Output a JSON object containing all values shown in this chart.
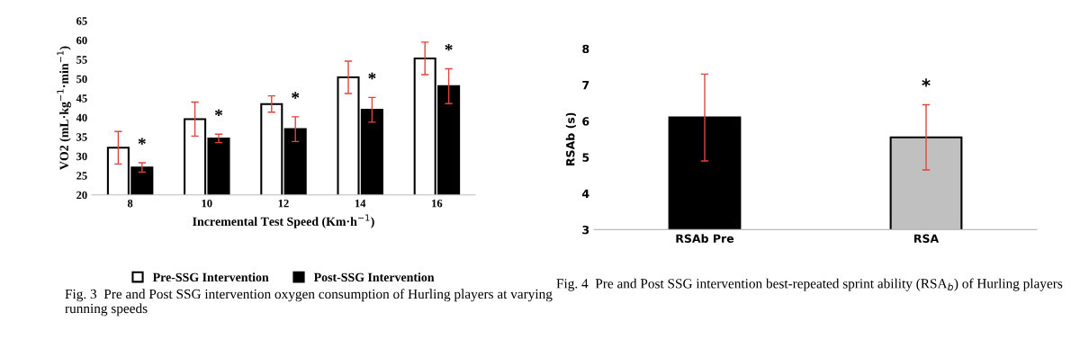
{
  "chart_data": [
    {
      "type": "bar",
      "categories": [
        "8",
        "10",
        "12",
        "14",
        "16"
      ],
      "xlabel": "Incremental Test Speed (Km·h$^{−1}$)",
      "ylabel": "VO2 (mL·kg$^{−1}$·min$^{−1}$)",
      "series": [
        {
          "name": "Pre-SSG Intervention",
          "color": "#ffffff",
          "values": [
            32.2,
            39.6,
            43.5,
            50.4,
            55.3
          ],
          "errors": [
            4.2,
            4.4,
            2.1,
            4.2,
            4.2
          ]
        },
        {
          "name": "Post-SSG Intervention",
          "color": "#000000",
          "values": [
            27.1,
            34.6,
            37.0,
            42.0,
            48.1
          ],
          "errors": [
            1.2,
            1.1,
            3.2,
            3.2,
            4.5
          ]
        }
      ],
      "ylim": [
        20,
        65
      ],
      "yticks": [
        20,
        25,
        30,
        35,
        40,
        45,
        50,
        55,
        60,
        65
      ],
      "grid": false,
      "legend": "bottom",
      "annotations": [
        "*",
        "*",
        "*",
        "*",
        "*",
        "Fig. 3  Pre and Post SSG intervention oxygen consumption of Hurling players at varying running speeds"
      ]
    },
    {
      "type": "bar",
      "categories": [
        "RSAb Pre",
        "RSA"
      ],
      "ylabel": "RSAb (s)",
      "values": [
        6.1,
        5.55
      ],
      "errors": [
        1.2,
        0.9
      ],
      "colors": [
        "#000000",
        "#c0c0c0"
      ],
      "ylim": [
        3,
        8
      ],
      "yticks": [
        3,
        4,
        5,
        6,
        7,
        8
      ],
      "grid": false,
      "annotations": [
        "*",
        "Fig. 4  Pre and Post SSG intervention best-repeated sprint ability (RSA$_{b}$) of Hurling players"
      ]
    }
  ]
}
